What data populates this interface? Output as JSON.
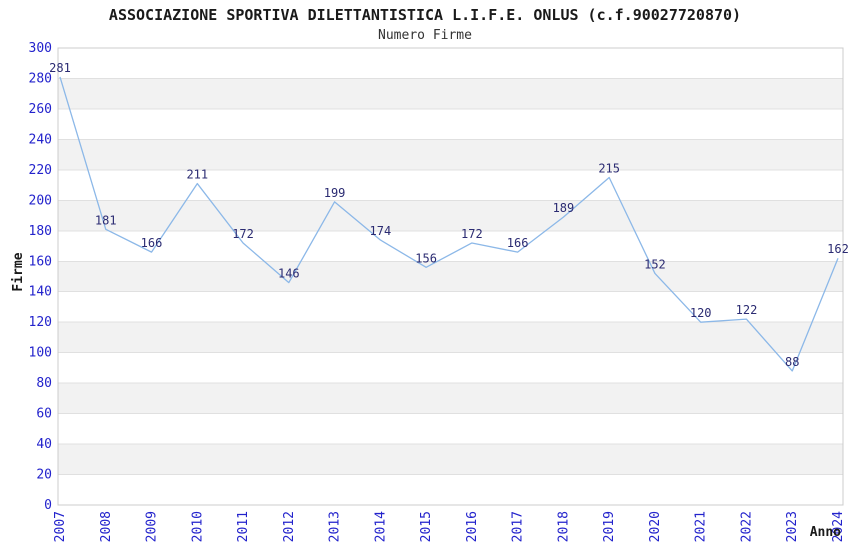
{
  "header": {
    "title": "ASSOCIAZIONE SPORTIVA DILETTANTISTICA L.I.F.E. ONLUS (c.f.90027720870)",
    "subtitle": "Numero Firme"
  },
  "chart_data": {
    "type": "line",
    "title": "ASSOCIAZIONE SPORTIVA DILETTANTISTICA L.I.F.E. ONLUS (c.f.90027720870)",
    "subtitle": "Numero Firme",
    "xlabel": "Anno",
    "ylabel": "Firme",
    "categories": [
      "2007",
      "2008",
      "2009",
      "2010",
      "2011",
      "2012",
      "2013",
      "2014",
      "2015",
      "2016",
      "2017",
      "2018",
      "2019",
      "2020",
      "2021",
      "2022",
      "2023",
      "2024"
    ],
    "series": [
      {
        "name": "Numero Firme",
        "values": [
          281,
          181,
          166,
          211,
          172,
          146,
          199,
          174,
          156,
          172,
          166,
          189,
          215,
          152,
          120,
          122,
          88,
          162
        ]
      }
    ],
    "ylim": [
      0,
      300
    ],
    "ytick_step": 20,
    "yticks": [
      0,
      20,
      40,
      60,
      80,
      100,
      120,
      140,
      160,
      180,
      200,
      220,
      240,
      260,
      280,
      300
    ],
    "grid": "horizontal",
    "bands": "alternating-horizontal",
    "legend_position": "none",
    "markers": "none",
    "x_label_rotation": -90,
    "colors": {
      "line": "#8cb8e8",
      "data_label": "#2b2b72",
      "tick_label": "#2323cc",
      "title": "#1a1a1a",
      "subtitle": "#333333",
      "axis_title": "#1a1a1a",
      "gridline": "#e0e0e0",
      "band": "#f2f2f2",
      "plot_border": "#cccccc",
      "background": "#ffffff"
    }
  }
}
